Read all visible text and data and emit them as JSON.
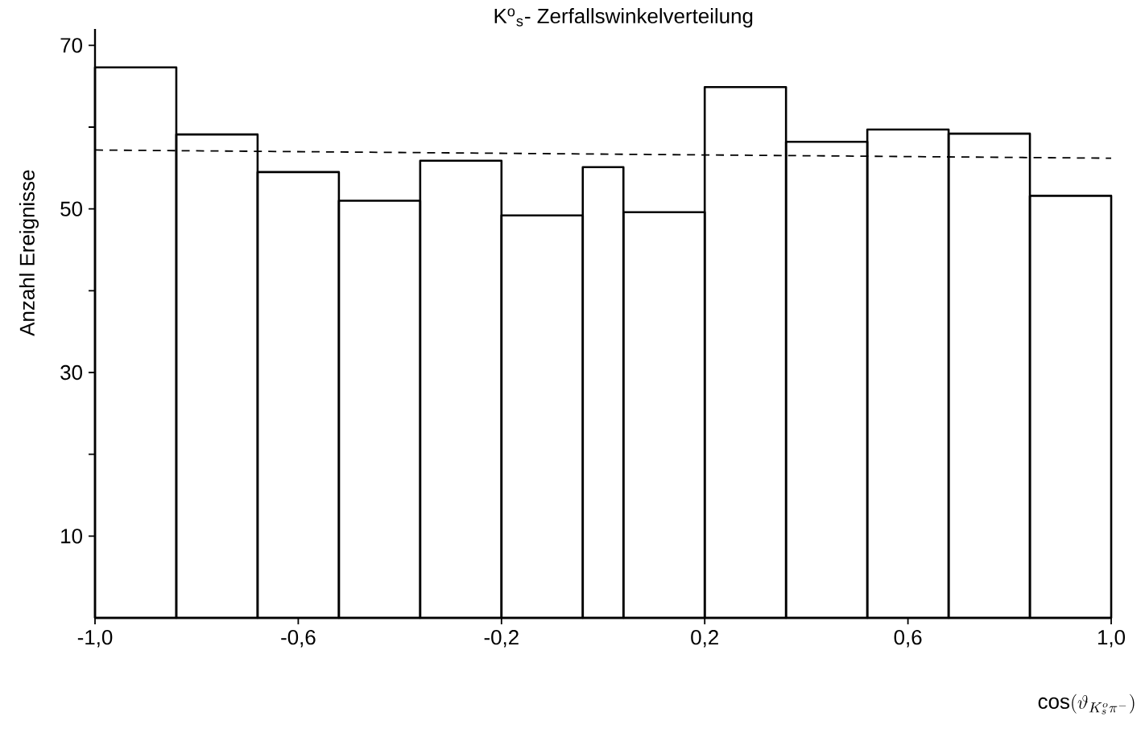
{
  "chart_data": {
    "type": "histogram",
    "title": "K$^{o}$$_{s}$- Zerfallswinkelverteilung",
    "xlabel": "\\cos(\\vartheta_{K^{o}_{s}\\pi^{-}})",
    "ylabel": "Anzahl Ereignisse",
    "bins": [
      -1,
      -0.84,
      -0.68,
      -0.52,
      -0.36,
      -0.2,
      -0.04,
      0.04,
      0.2,
      0.36,
      0.52,
      0.68,
      0.84,
      1.0
    ],
    "values": [
      67.3,
      59.1,
      54.5,
      51.0,
      55.9,
      49.2,
      55.1,
      49.6,
      64.9,
      58.2,
      59.7,
      59.2,
      51.6
    ],
    "color": "#000000",
    "xlim": [
      -1,
      1
    ],
    "ylim": [
      0,
      72
    ],
    "xticks": [
      {
        "value": -1,
        "label": "-1,0"
      },
      {
        "value": -0.6,
        "label": "-0,6"
      },
      {
        "value": -0.2,
        "label": "-0,2"
      },
      {
        "value": 0.2,
        "label": "0,2"
      },
      {
        "value": 0.6,
        "label": "0,6"
      },
      {
        "value": 1,
        "label": "1,0"
      }
    ],
    "yticks": [
      10,
      {
        "value": 20,
        "label": null
      },
      30,
      {
        "value": 40,
        "label": null
      },
      50,
      {
        "value": 60,
        "label": null
      },
      70
    ],
    "series": [
      {
        "type": "line",
        "x": [
          -1,
          1
        ],
        "values": [
          57.2,
          56.2
        ],
        "line_style": "dashed",
        "color": "#000000"
      }
    ]
  }
}
